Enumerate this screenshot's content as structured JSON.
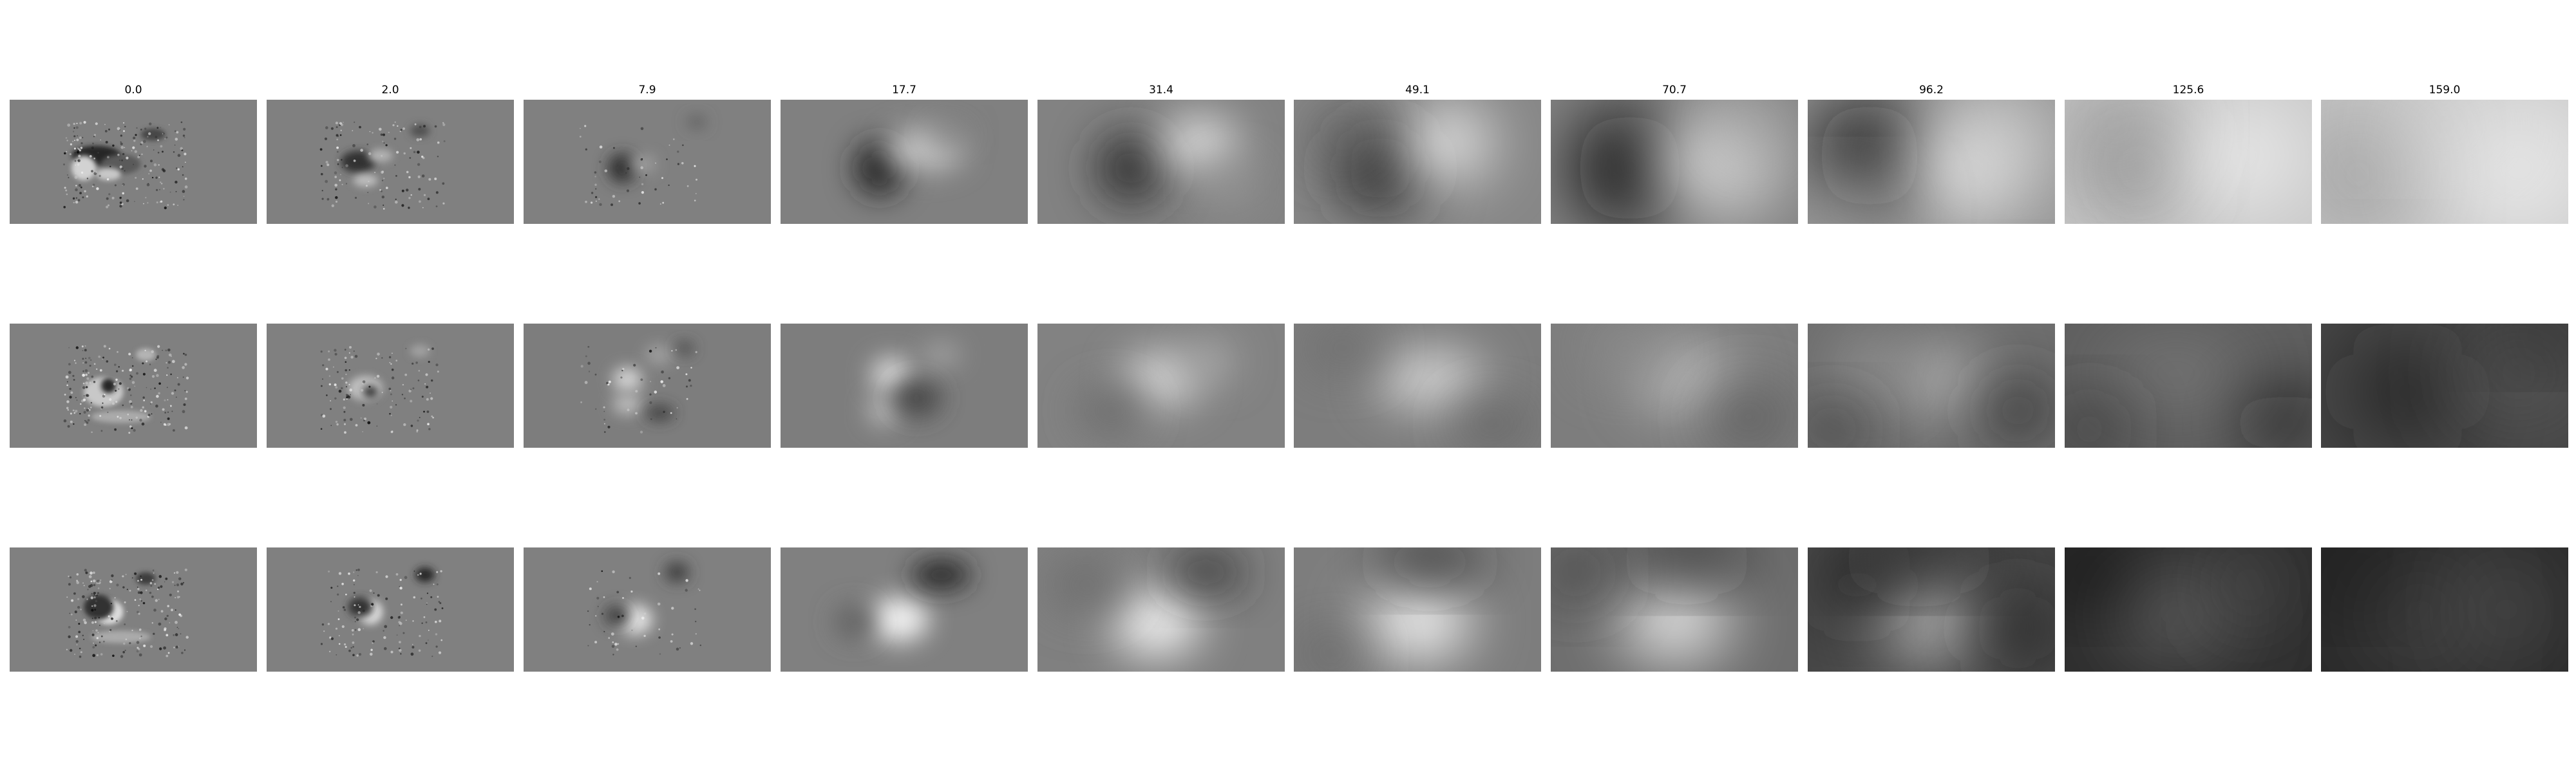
{
  "columns": [
    "0.0",
    "2.0",
    "7.9",
    "17.7",
    "31.4",
    "49.1",
    "70.7",
    "96.2",
    "125.6",
    "159.0"
  ],
  "rows": 3,
  "colormap": [
    "#000000",
    "#ffffff"
  ],
  "background": "#ffffff"
}
